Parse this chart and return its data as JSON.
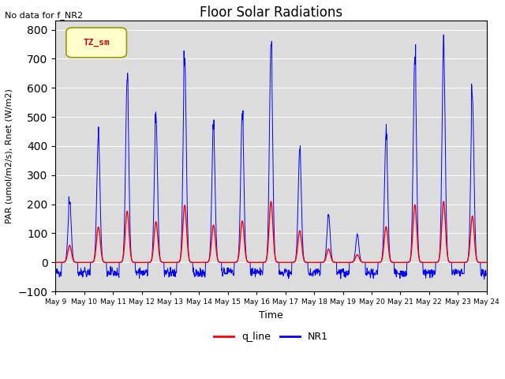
{
  "title": "Floor Solar Radiations",
  "top_left_text": "No data for f_NR2",
  "ylabel": "PAR (umol/m2/s), Rnet (W/m2)",
  "xlabel": "Time",
  "ylim": [
    -100,
    830
  ],
  "background_color": "#dcdcdc",
  "legend_label": "TZ_sm",
  "legend_bg": "#ffffcc",
  "legend_border": "#999900",
  "line1_color": "#ff0000",
  "line1_label": "q_line",
  "line2_color": "#0000ff",
  "line2_label": "NR1",
  "yticks": [
    -100,
    0,
    100,
    200,
    300,
    400,
    500,
    600,
    700,
    800
  ],
  "xtick_labels": [
    "May 9",
    "May 10",
    "May 11",
    "May 12",
    "May 13",
    "May 14",
    "May 15",
    "May 16",
    "May 17",
    "May 18",
    "May 19",
    "May 20",
    "May 21",
    "May 22",
    "May 23",
    "May 24"
  ],
  "figsize": [
    6.4,
    4.8
  ],
  "dpi": 100
}
